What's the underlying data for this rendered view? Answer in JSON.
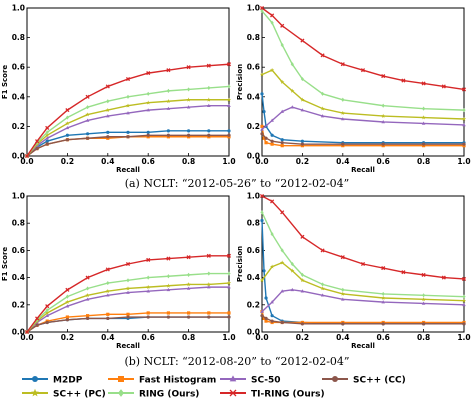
{
  "figure": {
    "caption_a": "(a) NCLT: “2012-05-26” to “2012-02-04”",
    "caption_b": "(b) NCLT: “2012-08-20” to “2012-02-04”"
  },
  "legend": {
    "entries": [
      {
        "name": "M2DP",
        "color": "#1f77b4",
        "marker": "circle"
      },
      {
        "name": "Fast Histogram",
        "color": "#ff7f0e",
        "marker": "square"
      },
      {
        "name": "SC-50",
        "color": "#9467bd",
        "marker": "triangle"
      },
      {
        "name": "SC++ (CC)",
        "color": "#8c564b",
        "marker": "circle"
      },
      {
        "name": "SC++ (PC)",
        "color": "#bcbd22",
        "marker": "star"
      },
      {
        "name": "RING (Ours)",
        "color": "#98df8a",
        "marker": "diamond"
      },
      {
        "name": "TI-RING (Ours)",
        "color": "#d62728",
        "marker": "x"
      }
    ]
  },
  "chart_data": [
    {
      "type": "line",
      "panel": "a-left",
      "xlabel": "Recall",
      "ylabel": "F1 Score",
      "xlim": [
        0,
        1
      ],
      "ylim": [
        0,
        1
      ],
      "xticks": [
        "0.0",
        "0.2",
        "0.4",
        "0.6",
        "0.8",
        "1.0"
      ],
      "yticks": [
        "0.0",
        "0.2",
        "0.4",
        "0.6",
        "0.8",
        "1.0"
      ],
      "grid": false,
      "series": [
        {
          "name": "M2DP",
          "color": "#1f77b4",
          "x": [
            0,
            0.05,
            0.1,
            0.2,
            0.3,
            0.4,
            0.5,
            0.6,
            0.7,
            0.8,
            0.9,
            1.0
          ],
          "y": [
            0,
            0.06,
            0.1,
            0.14,
            0.15,
            0.16,
            0.16,
            0.16,
            0.17,
            0.17,
            0.17,
            0.17
          ]
        },
        {
          "name": "Fast Histogram",
          "color": "#ff7f0e",
          "x": [
            0,
            0.05,
            0.1,
            0.2,
            0.3,
            0.4,
            0.5,
            0.6,
            0.7,
            0.8,
            0.9,
            1.0
          ],
          "y": [
            0,
            0.05,
            0.08,
            0.11,
            0.12,
            0.12,
            0.13,
            0.13,
            0.13,
            0.13,
            0.13,
            0.13
          ]
        },
        {
          "name": "SC-50",
          "color": "#9467bd",
          "x": [
            0,
            0.05,
            0.1,
            0.2,
            0.3,
            0.4,
            0.5,
            0.6,
            0.7,
            0.8,
            0.9,
            1.0
          ],
          "y": [
            0,
            0.07,
            0.12,
            0.19,
            0.24,
            0.27,
            0.29,
            0.31,
            0.32,
            0.33,
            0.34,
            0.34
          ]
        },
        {
          "name": "SC++ (CC)",
          "color": "#8c564b",
          "x": [
            0,
            0.05,
            0.1,
            0.2,
            0.3,
            0.4,
            0.5,
            0.6,
            0.7,
            0.8,
            0.9,
            1.0
          ],
          "y": [
            0,
            0.05,
            0.08,
            0.11,
            0.12,
            0.13,
            0.13,
            0.14,
            0.14,
            0.14,
            0.14,
            0.14
          ]
        },
        {
          "name": "SC++ (PC)",
          "color": "#bcbd22",
          "x": [
            0,
            0.05,
            0.1,
            0.2,
            0.3,
            0.4,
            0.5,
            0.6,
            0.7,
            0.8,
            0.9,
            1.0
          ],
          "y": [
            0,
            0.08,
            0.14,
            0.22,
            0.28,
            0.31,
            0.34,
            0.36,
            0.37,
            0.38,
            0.38,
            0.38
          ]
        },
        {
          "name": "RING (Ours)",
          "color": "#98df8a",
          "x": [
            0,
            0.05,
            0.1,
            0.2,
            0.3,
            0.4,
            0.5,
            0.6,
            0.7,
            0.8,
            0.9,
            1.0
          ],
          "y": [
            0,
            0.09,
            0.16,
            0.26,
            0.33,
            0.37,
            0.4,
            0.42,
            0.44,
            0.45,
            0.46,
            0.47
          ]
        },
        {
          "name": "TI-RING (Ours)",
          "color": "#d62728",
          "x": [
            0,
            0.05,
            0.1,
            0.2,
            0.3,
            0.4,
            0.5,
            0.6,
            0.7,
            0.8,
            0.9,
            1.0
          ],
          "y": [
            0,
            0.1,
            0.19,
            0.31,
            0.4,
            0.47,
            0.52,
            0.56,
            0.58,
            0.6,
            0.61,
            0.62
          ]
        }
      ]
    },
    {
      "type": "line",
      "panel": "a-right",
      "xlabel": "Recall",
      "ylabel": "Precision",
      "xlim": [
        0,
        1
      ],
      "ylim": [
        0,
        1
      ],
      "xticks": [
        "0.0",
        "0.2",
        "0.4",
        "0.6",
        "0.8",
        "1.0"
      ],
      "yticks": [
        "0.0",
        "0.2",
        "0.4",
        "0.6",
        "0.8",
        "1.0"
      ],
      "grid": false,
      "series": [
        {
          "name": "M2DP",
          "color": "#1f77b4",
          "x": [
            0,
            0.01,
            0.02,
            0.05,
            0.1,
            0.2,
            0.4,
            0.6,
            0.8,
            1.0
          ],
          "y": [
            0.42,
            0.3,
            0.2,
            0.14,
            0.11,
            0.1,
            0.09,
            0.09,
            0.09,
            0.09
          ]
        },
        {
          "name": "Fast Histogram",
          "color": "#ff7f0e",
          "x": [
            0,
            0.01,
            0.02,
            0.05,
            0.1,
            0.2,
            0.4,
            0.6,
            0.8,
            1.0
          ],
          "y": [
            0.2,
            0.12,
            0.09,
            0.08,
            0.07,
            0.07,
            0.07,
            0.07,
            0.07,
            0.07
          ]
        },
        {
          "name": "SC-50",
          "color": "#9467bd",
          "x": [
            0,
            0.05,
            0.1,
            0.15,
            0.2,
            0.3,
            0.4,
            0.6,
            0.8,
            1.0
          ],
          "y": [
            0.18,
            0.24,
            0.3,
            0.33,
            0.31,
            0.27,
            0.25,
            0.23,
            0.22,
            0.21
          ]
        },
        {
          "name": "SC++ (CC)",
          "color": "#8c564b",
          "x": [
            0,
            0.02,
            0.05,
            0.1,
            0.2,
            0.4,
            0.6,
            0.8,
            1.0
          ],
          "y": [
            0.15,
            0.12,
            0.1,
            0.09,
            0.08,
            0.08,
            0.08,
            0.08,
            0.08
          ]
        },
        {
          "name": "SC++ (PC)",
          "color": "#bcbd22",
          "x": [
            0,
            0.05,
            0.1,
            0.15,
            0.2,
            0.3,
            0.4,
            0.6,
            0.8,
            1.0
          ],
          "y": [
            0.55,
            0.58,
            0.5,
            0.44,
            0.38,
            0.32,
            0.29,
            0.27,
            0.26,
            0.25
          ]
        },
        {
          "name": "RING (Ours)",
          "color": "#98df8a",
          "x": [
            0,
            0.05,
            0.1,
            0.15,
            0.2,
            0.3,
            0.4,
            0.6,
            0.8,
            1.0
          ],
          "y": [
            0.98,
            0.9,
            0.75,
            0.62,
            0.52,
            0.42,
            0.38,
            0.34,
            0.32,
            0.31
          ]
        },
        {
          "name": "TI-RING (Ours)",
          "color": "#d62728",
          "x": [
            0,
            0.05,
            0.1,
            0.2,
            0.3,
            0.4,
            0.5,
            0.6,
            0.7,
            0.8,
            0.9,
            1.0
          ],
          "y": [
            1.0,
            0.95,
            0.88,
            0.78,
            0.68,
            0.62,
            0.58,
            0.54,
            0.51,
            0.49,
            0.47,
            0.45
          ]
        }
      ]
    },
    {
      "type": "line",
      "panel": "b-left",
      "xlabel": "Recall",
      "ylabel": "F1 Score",
      "xlim": [
        0,
        1
      ],
      "ylim": [
        0,
        1
      ],
      "xticks": [
        "0.0",
        "0.2",
        "0.4",
        "0.6",
        "0.8",
        "1.0"
      ],
      "yticks": [
        "0.0",
        "0.2",
        "0.4",
        "0.6",
        "0.8",
        "1.0"
      ],
      "grid": false,
      "series": [
        {
          "name": "M2DP",
          "color": "#1f77b4",
          "x": [
            0,
            0.05,
            0.1,
            0.2,
            0.3,
            0.4,
            0.5,
            0.6,
            0.7,
            0.8,
            0.9,
            1.0
          ],
          "y": [
            0,
            0.05,
            0.07,
            0.09,
            0.1,
            0.1,
            0.1,
            0.11,
            0.11,
            0.11,
            0.11,
            0.11
          ]
        },
        {
          "name": "Fast Histogram",
          "color": "#ff7f0e",
          "x": [
            0,
            0.05,
            0.1,
            0.2,
            0.3,
            0.4,
            0.5,
            0.6,
            0.7,
            0.8,
            0.9,
            1.0
          ],
          "y": [
            0,
            0.05,
            0.08,
            0.11,
            0.12,
            0.13,
            0.13,
            0.14,
            0.14,
            0.14,
            0.14,
            0.14
          ]
        },
        {
          "name": "SC-50",
          "color": "#9467bd",
          "x": [
            0,
            0.05,
            0.1,
            0.2,
            0.3,
            0.4,
            0.5,
            0.6,
            0.7,
            0.8,
            0.9,
            1.0
          ],
          "y": [
            0,
            0.07,
            0.12,
            0.19,
            0.24,
            0.27,
            0.29,
            0.3,
            0.31,
            0.32,
            0.33,
            0.33
          ]
        },
        {
          "name": "SC++ (CC)",
          "color": "#8c564b",
          "x": [
            0,
            0.05,
            0.1,
            0.2,
            0.3,
            0.4,
            0.5,
            0.6,
            0.7,
            0.8,
            0.9,
            1.0
          ],
          "y": [
            0,
            0.05,
            0.07,
            0.09,
            0.1,
            0.1,
            0.11,
            0.11,
            0.11,
            0.11,
            0.11,
            0.11
          ]
        },
        {
          "name": "SC++ (PC)",
          "color": "#bcbd22",
          "x": [
            0,
            0.05,
            0.1,
            0.2,
            0.3,
            0.4,
            0.5,
            0.6,
            0.7,
            0.8,
            0.9,
            1.0
          ],
          "y": [
            0,
            0.08,
            0.14,
            0.22,
            0.27,
            0.3,
            0.32,
            0.33,
            0.34,
            0.35,
            0.35,
            0.36
          ]
        },
        {
          "name": "RING (Ours)",
          "color": "#98df8a",
          "x": [
            0,
            0.05,
            0.1,
            0.2,
            0.3,
            0.4,
            0.5,
            0.6,
            0.7,
            0.8,
            0.9,
            1.0
          ],
          "y": [
            0,
            0.09,
            0.16,
            0.26,
            0.32,
            0.36,
            0.38,
            0.4,
            0.41,
            0.42,
            0.43,
            0.43
          ]
        },
        {
          "name": "TI-RING (Ours)",
          "color": "#d62728",
          "x": [
            0,
            0.05,
            0.1,
            0.2,
            0.3,
            0.4,
            0.5,
            0.6,
            0.7,
            0.8,
            0.9,
            1.0
          ],
          "y": [
            0,
            0.1,
            0.19,
            0.31,
            0.4,
            0.46,
            0.5,
            0.53,
            0.54,
            0.55,
            0.56,
            0.56
          ]
        }
      ]
    },
    {
      "type": "line",
      "panel": "b-right",
      "xlabel": "Recall",
      "ylabel": "Precision",
      "xlim": [
        0,
        1
      ],
      "ylim": [
        0,
        1
      ],
      "xticks": [
        "0.0",
        "0.2",
        "0.4",
        "0.6",
        "0.8",
        "1.0"
      ],
      "yticks": [
        "0.0",
        "0.2",
        "0.4",
        "0.6",
        "0.8",
        "1.0"
      ],
      "grid": false,
      "series": [
        {
          "name": "M2DP",
          "color": "#1f77b4",
          "x": [
            0,
            0.01,
            0.02,
            0.05,
            0.1,
            0.2,
            0.4,
            0.6,
            0.8,
            1.0
          ],
          "y": [
            0.82,
            0.45,
            0.25,
            0.12,
            0.08,
            0.07,
            0.06,
            0.06,
            0.06,
            0.06
          ]
        },
        {
          "name": "Fast Histogram",
          "color": "#ff7f0e",
          "x": [
            0,
            0.01,
            0.02,
            0.05,
            0.1,
            0.2,
            0.4,
            0.6,
            0.8,
            1.0
          ],
          "y": [
            0.15,
            0.1,
            0.08,
            0.07,
            0.07,
            0.07,
            0.07,
            0.07,
            0.07,
            0.07
          ]
        },
        {
          "name": "SC-50",
          "color": "#9467bd",
          "x": [
            0,
            0.05,
            0.1,
            0.15,
            0.2,
            0.3,
            0.4,
            0.6,
            0.8,
            1.0
          ],
          "y": [
            0.15,
            0.22,
            0.3,
            0.31,
            0.3,
            0.27,
            0.24,
            0.22,
            0.21,
            0.2
          ]
        },
        {
          "name": "SC++ (CC)",
          "color": "#8c564b",
          "x": [
            0,
            0.02,
            0.05,
            0.1,
            0.2,
            0.4,
            0.6,
            0.8,
            1.0
          ],
          "y": [
            0.12,
            0.1,
            0.08,
            0.07,
            0.06,
            0.06,
            0.06,
            0.06,
            0.06
          ]
        },
        {
          "name": "SC++ (PC)",
          "color": "#bcbd22",
          "x": [
            0,
            0.05,
            0.1,
            0.15,
            0.2,
            0.3,
            0.4,
            0.6,
            0.8,
            1.0
          ],
          "y": [
            0.38,
            0.48,
            0.51,
            0.45,
            0.38,
            0.32,
            0.28,
            0.25,
            0.24,
            0.23
          ]
        },
        {
          "name": "RING (Ours)",
          "color": "#98df8a",
          "x": [
            0,
            0.05,
            0.1,
            0.15,
            0.2,
            0.3,
            0.4,
            0.6,
            0.8,
            1.0
          ],
          "y": [
            0.88,
            0.72,
            0.6,
            0.5,
            0.42,
            0.35,
            0.31,
            0.28,
            0.27,
            0.26
          ]
        },
        {
          "name": "TI-RING (Ours)",
          "color": "#d62728",
          "x": [
            0,
            0.05,
            0.1,
            0.2,
            0.3,
            0.4,
            0.5,
            0.6,
            0.7,
            0.8,
            0.9,
            1.0
          ],
          "y": [
            1.0,
            0.96,
            0.88,
            0.7,
            0.6,
            0.55,
            0.5,
            0.47,
            0.44,
            0.42,
            0.4,
            0.39
          ]
        }
      ]
    }
  ]
}
